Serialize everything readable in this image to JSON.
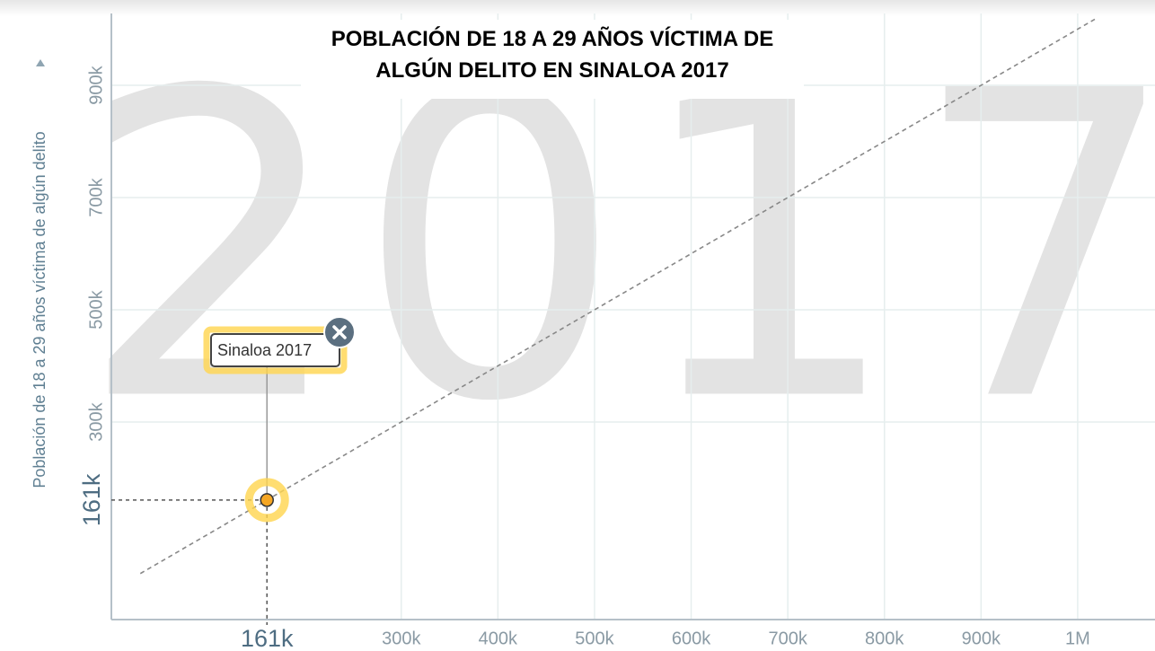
{
  "chart_data": {
    "type": "scatter",
    "title": "POBLACIÓN DE 18 A 29 AÑOS VÍCTIMA DE ALGÚN DELITO EN SINALOA 2017",
    "watermark": "2017",
    "y_label": "Población de 18 a 29 años víctima de algún delito",
    "x": [
      161000
    ],
    "values": [
      161000
    ],
    "point_labels": [
      "Sinaloa 2017"
    ],
    "highlight_labels": {
      "x": "161k",
      "y": "161k"
    },
    "color": "#f5a623",
    "xlim": [
      0,
      1080000
    ],
    "ylim": [
      -52000,
      1028000
    ],
    "xticks": [
      {
        "value": 300000,
        "label": "300k"
      },
      {
        "value": 400000,
        "label": "400k"
      },
      {
        "value": 500000,
        "label": "500k"
      },
      {
        "value": 600000,
        "label": "600k"
      },
      {
        "value": 700000,
        "label": "700k"
      },
      {
        "value": 800000,
        "label": "800k"
      },
      {
        "value": 900000,
        "label": "900k"
      },
      {
        "value": 1000000,
        "label": "1M"
      }
    ],
    "yticks": [
      {
        "value": 300000,
        "label": "300k"
      },
      {
        "value": 500000,
        "label": "500k"
      },
      {
        "value": 700000,
        "label": "700k"
      },
      {
        "value": 900000,
        "label": "900k"
      }
    ],
    "grid": true,
    "reference_line": "y=x"
  }
}
